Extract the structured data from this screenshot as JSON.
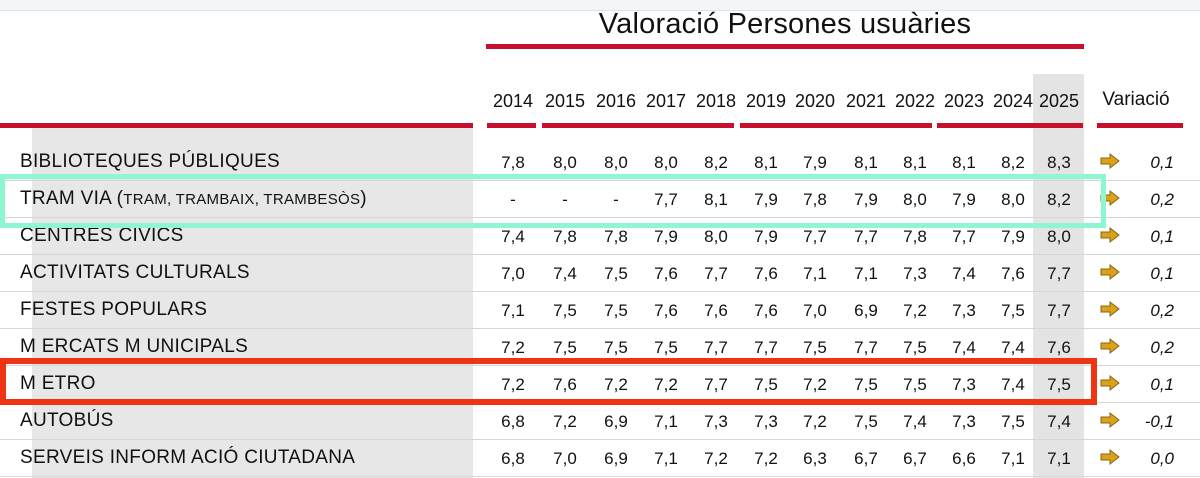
{
  "title": "Valoració Persones usuàries",
  "variation_header": "Variació",
  "years": [
    "2014",
    "2015",
    "2016",
    "2017",
    "2018",
    "2019",
    "2020",
    "2021",
    "2022",
    "2023",
    "2024",
    "2025"
  ],
  "rows": [
    {
      "label": "BIBLIOTEQUES PÚBLIQUES",
      "label_small": "",
      "label_suffix": "",
      "values": [
        "7,8",
        "8,0",
        "8,0",
        "8,0",
        "8,2",
        "8,1",
        "7,9",
        "8,1",
        "8,1",
        "8,1",
        "8,2",
        "8,3"
      ],
      "variation": "0,1"
    },
    {
      "label": "TRAM VIA (",
      "label_small": "TRAM, TRAMBAIX, TRAMBESÒS",
      "label_suffix": ")",
      "values": [
        "-",
        "-",
        "-",
        "7,7",
        "8,1",
        "7,9",
        "7,8",
        "7,9",
        "8,0",
        "7,9",
        "8,0",
        "8,2"
      ],
      "variation": "0,2"
    },
    {
      "label": "CENTRES CÍVICS",
      "label_small": "",
      "label_suffix": "",
      "values": [
        "7,4",
        "7,8",
        "7,8",
        "7,9",
        "8,0",
        "7,9",
        "7,7",
        "7,7",
        "7,8",
        "7,7",
        "7,9",
        "8,0"
      ],
      "variation": "0,1"
    },
    {
      "label": "ACTIVITATS CULTURALS",
      "label_small": "",
      "label_suffix": "",
      "values": [
        "7,0",
        "7,4",
        "7,5",
        "7,6",
        "7,7",
        "7,6",
        "7,1",
        "7,1",
        "7,3",
        "7,4",
        "7,6",
        "7,7"
      ],
      "variation": "0,1"
    },
    {
      "label": "FESTES POPULARS",
      "label_small": "",
      "label_suffix": "",
      "values": [
        "7,1",
        "7,5",
        "7,5",
        "7,6",
        "7,6",
        "7,6",
        "7,0",
        "6,9",
        "7,2",
        "7,3",
        "7,5",
        "7,7"
      ],
      "variation": "0,2"
    },
    {
      "label": "M ERCATS M UNICIPALS",
      "label_small": "",
      "label_suffix": "",
      "values": [
        "7,2",
        "7,5",
        "7,5",
        "7,5",
        "7,7",
        "7,7",
        "7,5",
        "7,7",
        "7,5",
        "7,4",
        "7,4",
        "7,6"
      ],
      "variation": "0,2"
    },
    {
      "label": "M ETRO",
      "label_small": "",
      "label_suffix": "",
      "values": [
        "7,2",
        "7,6",
        "7,2",
        "7,2",
        "7,7",
        "7,5",
        "7,2",
        "7,5",
        "7,5",
        "7,3",
        "7,4",
        "7,5"
      ],
      "variation": "0,1"
    },
    {
      "label": "AUTOBÚS",
      "label_small": "",
      "label_suffix": "",
      "values": [
        "6,8",
        "7,2",
        "6,9",
        "7,1",
        "7,3",
        "7,3",
        "7,2",
        "7,5",
        "7,4",
        "7,3",
        "7,5",
        "7,4"
      ],
      "variation": "-0,1"
    },
    {
      "label": "SERVEIS INFORM ACIÓ CIUTADANA",
      "label_small": "",
      "label_suffix": "",
      "values": [
        "6,8",
        "7,0",
        "6,9",
        "7,1",
        "7,2",
        "7,2",
        "6,3",
        "6,7",
        "6,7",
        "6,6",
        "7,1",
        "7,1"
      ],
      "variation": "0,0"
    }
  ],
  "highlights": {
    "teal_row": "TRAM VIA",
    "red_row": "M ETRO"
  },
  "colors": {
    "accent_red": "#c8102e",
    "teal_box": "#8ef7d0",
    "red_box": "#ee3415",
    "arrow_gold": "#d9a21a"
  }
}
